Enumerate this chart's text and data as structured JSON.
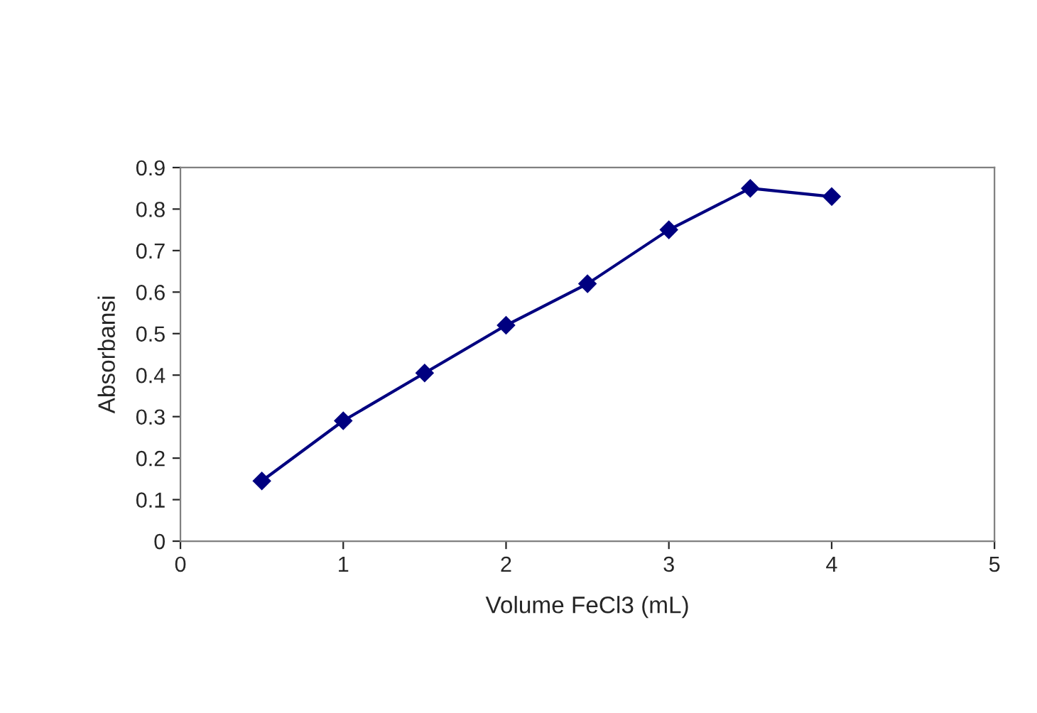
{
  "chart_data": {
    "type": "line",
    "xlabel": "Volume FeCl3 (mL)",
    "ylabel": "Absorbansi",
    "x": [
      0.5,
      1,
      1.5,
      2,
      2.5,
      3,
      3.5,
      4
    ],
    "series": [
      {
        "color": "#000080",
        "values": [
          0.145,
          0.29,
          0.405,
          0.52,
          0.62,
          0.75,
          0.85,
          0.83
        ]
      }
    ],
    "xlim": [
      0,
      5
    ],
    "xticks": [
      0,
      1,
      2,
      3,
      4,
      5
    ],
    "ylim": [
      0,
      0.9
    ],
    "yticks": [
      0,
      0.1,
      0.2,
      0.3,
      0.4,
      0.5,
      0.6,
      0.7,
      0.8,
      0.9
    ],
    "marker": "diamond",
    "line_style": "solid",
    "grid": false,
    "legend": false
  }
}
